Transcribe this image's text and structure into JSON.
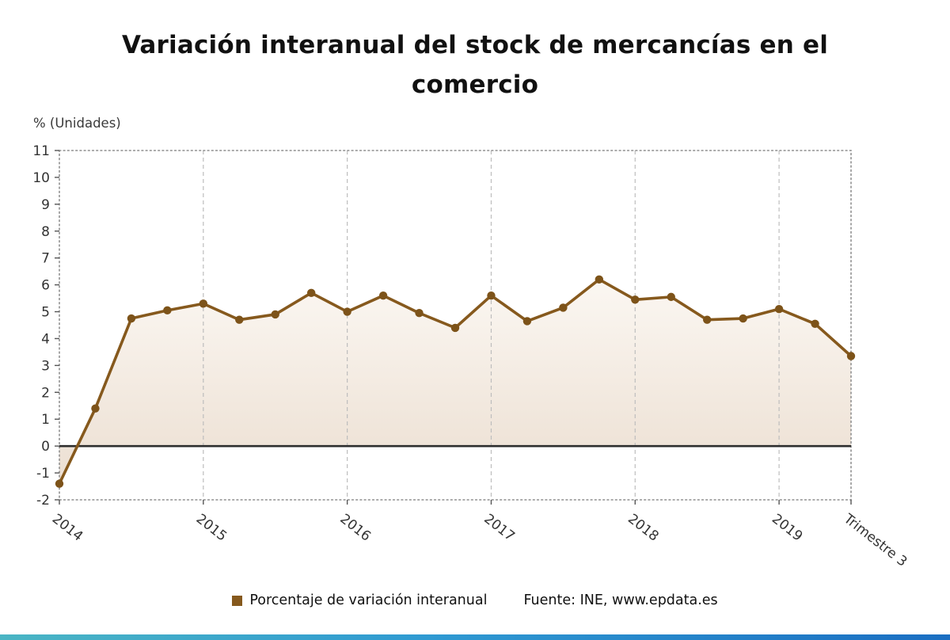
{
  "page": {
    "title_lines": [
      "Variación interanual del stock de mercancías en el",
      "comercio"
    ],
    "axis_unit_label": "% (Unidades)",
    "legend_label": "Porcentaje de variación interanual",
    "source_label": "Fuente: INE, www.epdata.es"
  },
  "chart_data": {
    "type": "line",
    "title": "Variación interanual del stock de mercancías en el comercio",
    "ylabel": "% (Unidades)",
    "ylim": [
      -2,
      11
    ],
    "ytick_step": 1,
    "y_tick_labels": [
      "-2",
      "-1",
      "0",
      "1",
      "2",
      "3",
      "4",
      "5",
      "6",
      "7",
      "8",
      "9",
      "10",
      "11"
    ],
    "x": [
      "2014 T1",
      "2014 T2",
      "2014 T3",
      "2014 T4",
      "2015 T1",
      "2015 T2",
      "2015 T3",
      "2015 T4",
      "2016 T1",
      "2016 T2",
      "2016 T3",
      "2016 T4",
      "2017 T1",
      "2017 T2",
      "2017 T3",
      "2017 T4",
      "2018 T1",
      "2018 T2",
      "2018 T3",
      "2018 T4",
      "2019 T1",
      "2019 T2",
      "2019 T3"
    ],
    "x_tick_labels": [
      "2014",
      "2015",
      "2016",
      "2017",
      "2018",
      "2019",
      "Trimestre 3"
    ],
    "x_tick_indices": [
      0,
      4,
      8,
      12,
      16,
      20,
      22
    ],
    "series": [
      {
        "name": "Porcentaje de variación interanual",
        "color": "#86591d",
        "marker_color": "#7d5319",
        "values": [
          -1.4,
          1.4,
          4.75,
          5.05,
          5.3,
          4.7,
          4.9,
          5.7,
          5.0,
          5.6,
          4.95,
          4.4,
          5.6,
          4.65,
          5.15,
          6.2,
          5.45,
          5.55,
          4.7,
          4.75,
          5.1,
          4.55,
          3.35
        ]
      }
    ],
    "area_fill": {
      "top": "#fbf7f2",
      "bottom": "#ecdfd2"
    },
    "zero_line_color": "#2e2e2e",
    "grid": "vertical-dashed",
    "legend_position": "bottom"
  },
  "colors": {
    "accent_bar": [
      "#4ab5c4",
      "#2f9ad2",
      "#1a6ec2"
    ],
    "axis_text": "#333333",
    "gridline": "#bdbdbd",
    "plot_border": "#8f8f8f"
  }
}
